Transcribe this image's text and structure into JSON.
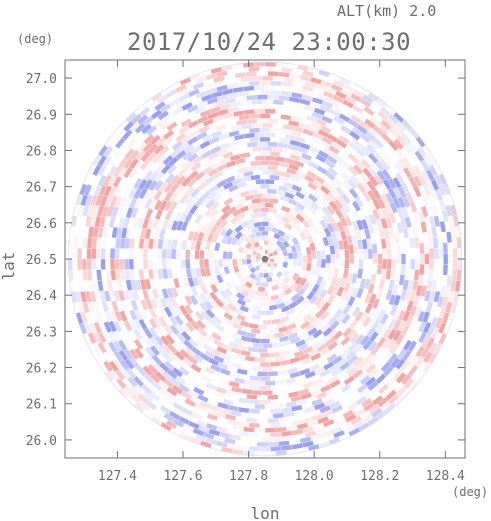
{
  "chart_data": {
    "type": "heatmap",
    "title": "2017/10/24 23:00:30",
    "altitude_label": "ALT(km) 2.0",
    "xlabel": "lon",
    "ylabel": "lat",
    "x_unit": "(deg)",
    "y_unit": "(deg)",
    "xlim": [
      127.24,
      128.46
    ],
    "ylim": [
      25.95,
      27.05
    ],
    "x_ticks": [
      "127.4",
      "127.6",
      "127.8",
      "128.0",
      "128.2",
      "128.4"
    ],
    "y_ticks": [
      "26.0",
      "26.1",
      "26.2",
      "26.3",
      "26.4",
      "26.5",
      "26.6",
      "26.7",
      "26.8",
      "26.9",
      "27.0"
    ],
    "center": {
      "lon": 127.85,
      "lat": 26.5
    },
    "radar_radius_deg_lat": 0.545,
    "colormap": {
      "negative": "#8f96f0",
      "zero": "#ffffff",
      "positive": "#f19a9a"
    },
    "grid": false,
    "legend": "none"
  }
}
